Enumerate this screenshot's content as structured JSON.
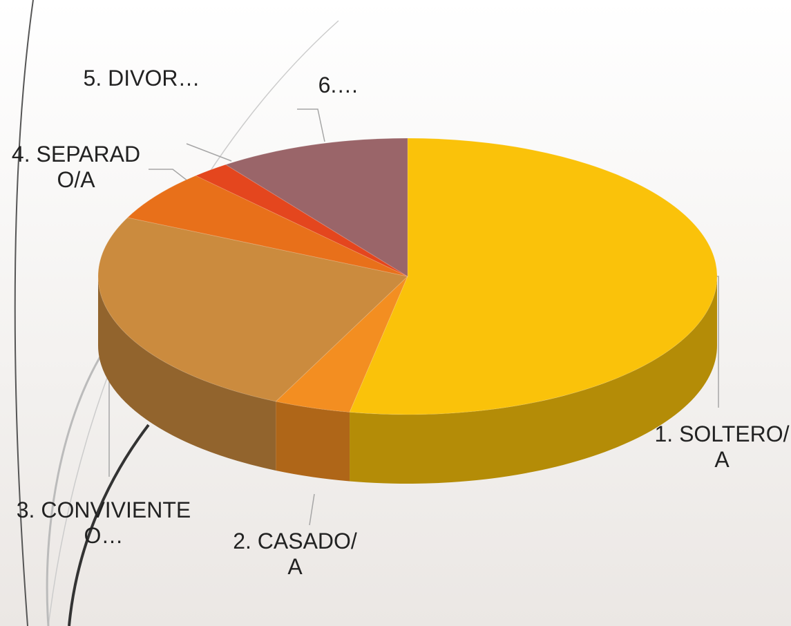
{
  "chart_data": {
    "type": "pie3d",
    "categories": [
      "1. SOLTERO/A",
      "2. CASADO/A",
      "3. CONVIVIENTE O…",
      "4. SEPARADO/A",
      "5. DIVOR…",
      "6.…"
    ],
    "values": [
      53,
      4,
      25,
      6,
      2,
      10
    ],
    "colors": [
      "#fac20a",
      "#f38e21",
      "#cb8b3e",
      "#e8701a",
      "#e4461e",
      "#9a6569"
    ]
  }
}
